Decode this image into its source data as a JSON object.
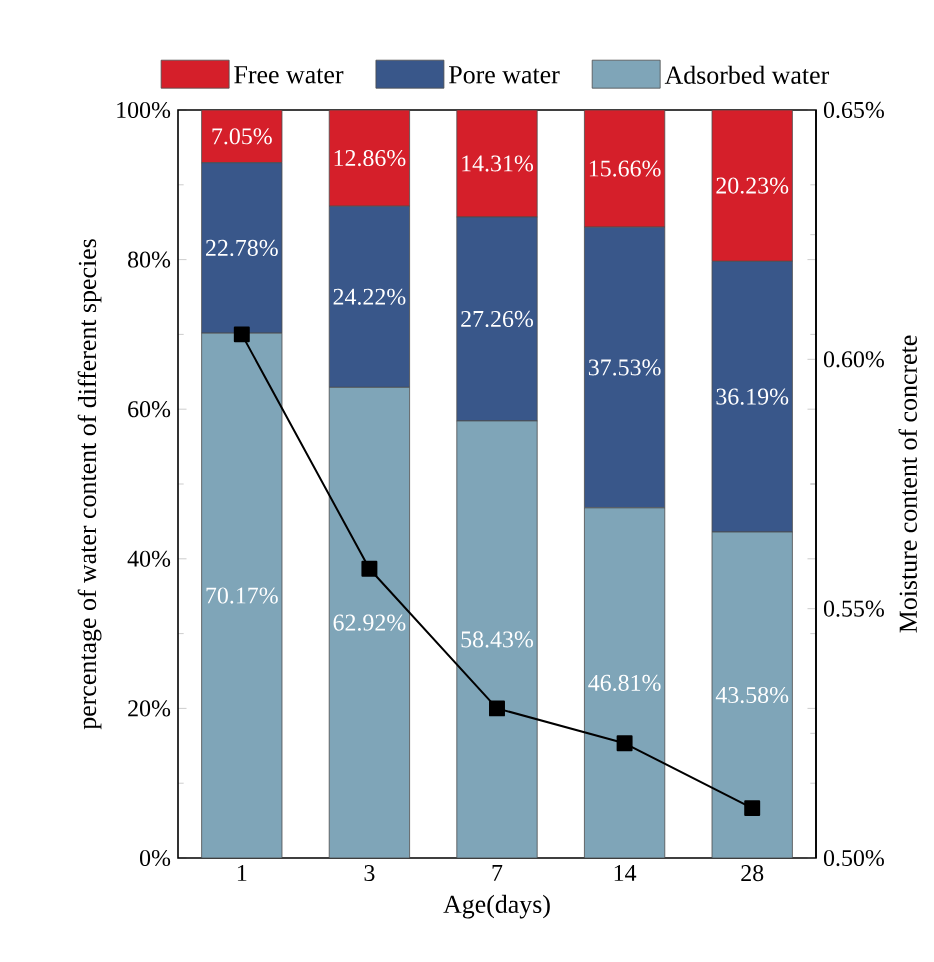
{
  "chart_data": {
    "type": "bar",
    "stacked": true,
    "xlabel": "Age(days)",
    "ylabel": "percentage of water content of different species",
    "y2label": "Moisture content of concrete",
    "categories": [
      "1",
      "3",
      "7",
      "14",
      "28"
    ],
    "series": [
      {
        "name": "Adsorbed water",
        "color": "#7fa5b8",
        "values": [
          70.17,
          62.92,
          58.43,
          46.81,
          43.58
        ],
        "value_labels": [
          "70.17%",
          "62.92%",
          "58.43%",
          "46.81%",
          "43.58%"
        ]
      },
      {
        "name": "Pore water",
        "color": "#39578a",
        "values": [
          22.78,
          24.22,
          27.26,
          37.53,
          36.19
        ],
        "value_labels": [
          "22.78%",
          "24.22%",
          "27.26%",
          "37.53%",
          "36.19%"
        ]
      },
      {
        "name": "Free water",
        "color": "#d51f2a",
        "values": [
          7.05,
          12.86,
          14.31,
          15.66,
          20.23
        ],
        "value_labels": [
          "7.05%",
          "12.86%",
          "14.31%",
          "15.66%",
          "20.23%"
        ]
      },
      {
        "type": "line",
        "axis": "y2",
        "color": "#000000",
        "marker": "square",
        "values": [
          0.605,
          0.558,
          0.53,
          0.523,
          0.51
        ]
      }
    ],
    "ylim": [
      0,
      100
    ],
    "yticks": [
      {
        "value": 0,
        "label": "0%"
      },
      {
        "value": 20,
        "label": "20%"
      },
      {
        "value": 40,
        "label": "40%"
      },
      {
        "value": 60,
        "label": "60%"
      },
      {
        "value": 80,
        "label": "80%"
      },
      {
        "value": 100,
        "label": "100%"
      }
    ],
    "y2lim": [
      0.5,
      0.65
    ],
    "y2ticks": [
      {
        "value": 0.5,
        "label": "0.50%"
      },
      {
        "value": 0.55,
        "label": "0.55%"
      },
      {
        "value": 0.6,
        "label": "0.60%"
      },
      {
        "value": 0.65,
        "label": "0.65%"
      }
    ],
    "legend": "top"
  }
}
